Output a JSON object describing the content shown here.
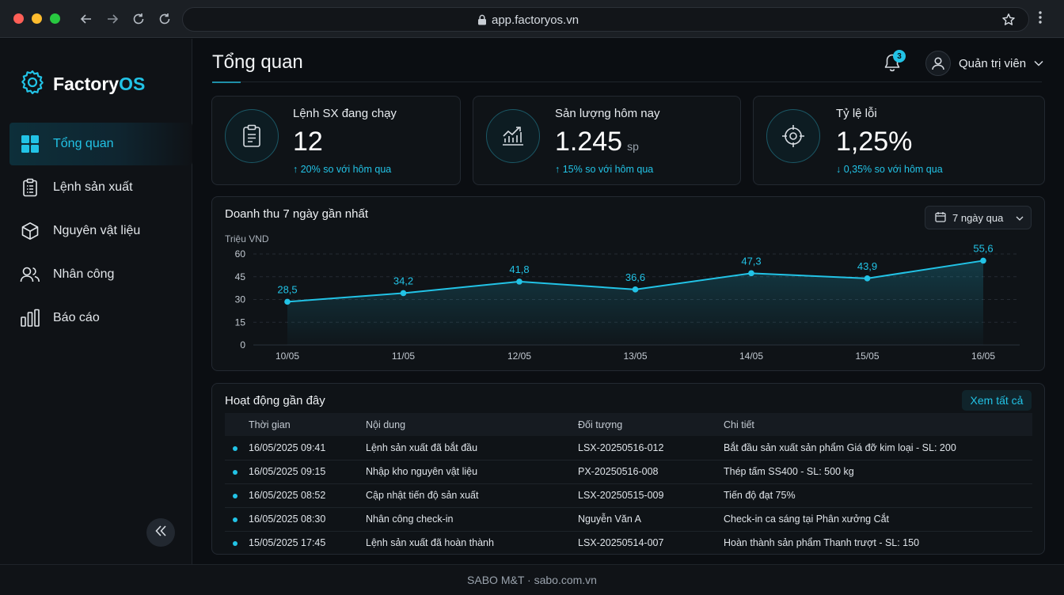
{
  "browser": {
    "url": "app.factoryos.vn"
  },
  "sidebar": {
    "logo_prefix": "Factory",
    "logo_suffix": "OS",
    "items": [
      {
        "label": "Tổng quan",
        "icon": "dashboard-grid-icon"
      },
      {
        "label": "Lệnh sản xuất",
        "icon": "clipboard-icon"
      },
      {
        "label": "Nguyên vật liệu",
        "icon": "cube-icon"
      },
      {
        "label": "Nhân công",
        "icon": "users-icon"
      },
      {
        "label": "Báo cáo",
        "icon": "bar-chart-icon"
      }
    ]
  },
  "header": {
    "title": "Tổng quan",
    "notification_count": "3",
    "user_name": "Quản trị viên"
  },
  "stats": [
    {
      "label": "Lệnh SX đang chạy",
      "value": "12",
      "unit": "",
      "trend": "↑ 20% so với hôm qua",
      "icon": "clipboard-icon"
    },
    {
      "label": "Sản lượng hôm nay",
      "value": "1.245",
      "unit": "sp",
      "trend": "↑ 15% so với hôm qua",
      "icon": "trend-up-chart-icon"
    },
    {
      "label": "Tỷ lệ lỗi",
      "value": "1,25%",
      "unit": "",
      "trend": "↓ 0,35% so với hôm qua",
      "icon": "target-icon"
    }
  ],
  "revenue": {
    "title": "Doanh thu 7 ngày gần nhất",
    "range_label": "7 ngày qua"
  },
  "chart_data": {
    "type": "area",
    "ylabel": "Triệu VND",
    "x": [
      "10/05",
      "11/05",
      "12/05",
      "13/05",
      "14/05",
      "15/05",
      "16/05"
    ],
    "values": [
      28.5,
      34.2,
      41.8,
      36.6,
      47.3,
      43.9,
      55.6
    ],
    "value_labels": [
      "28,5",
      "34,2",
      "41,8",
      "36,6",
      "47,3",
      "43,9",
      "55,6"
    ],
    "ylim": [
      0,
      60
    ],
    "yticks": [
      "0",
      "15",
      "30",
      "45",
      "60"
    ],
    "grid": true,
    "line_color": "#22c3e6"
  },
  "activity": {
    "title": "Hoạt động gần đây",
    "view_all": "Xem tất cả",
    "columns": [
      "Thời gian",
      "Nội dung",
      "Đối tượng",
      "Chi tiết"
    ],
    "rows": [
      {
        "time": "16/05/2025 09:41",
        "content": "Lệnh sản xuất đã bắt đầu",
        "target": "LSX-20250516-012",
        "detail": "Bắt đầu sản xuất sản phẩm Giá đỡ kim loại - SL: 200"
      },
      {
        "time": "16/05/2025 09:15",
        "content": "Nhập kho nguyên vật liệu",
        "target": "PX-20250516-008",
        "detail": "Thép tấm SS400 - SL: 500 kg"
      },
      {
        "time": "16/05/2025 08:52",
        "content": "Cập nhật tiến độ sản xuất",
        "target": "LSX-20250515-009",
        "detail": "Tiến độ đạt 75%"
      },
      {
        "time": "16/05/2025 08:30",
        "content": "Nhân công check-in",
        "target": "Nguyễn Văn A",
        "detail": "Check-in ca sáng tại Phân xưởng Cắt"
      },
      {
        "time": "15/05/2025 17:45",
        "content": "Lệnh sản xuất đã hoàn thành",
        "target": "LSX-20250514-007",
        "detail": "Hoàn thành sản phẩm Thanh trượt - SL: 150"
      }
    ]
  },
  "footer": {
    "text": "SABO M&T · sabo.com.vn"
  }
}
